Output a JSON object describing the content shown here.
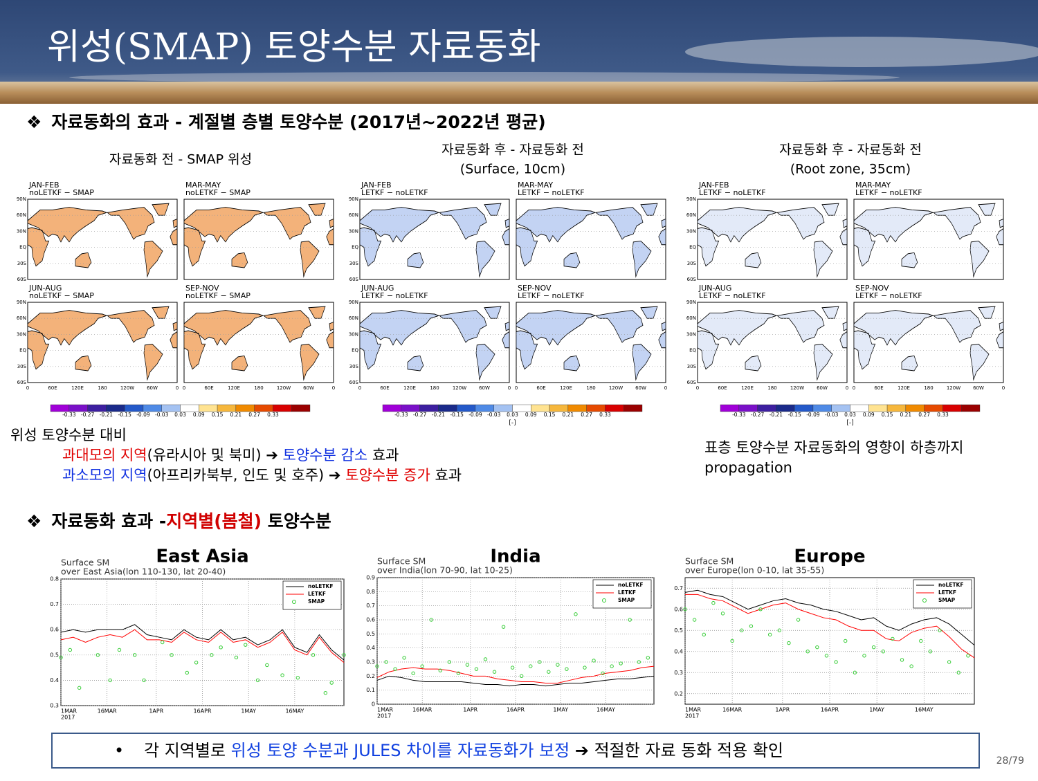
{
  "header": {
    "title": "위성(SMAP) 토양수분 자료동화"
  },
  "section1": {
    "bullet": "❖",
    "heading": "자료동화의 효과 - 계절별 층별 토양수분 (2017년~2022년 평균)"
  },
  "map_axes": {
    "lat_labels": [
      "90N",
      "60N",
      "30N",
      "EQ",
      "30S",
      "60S"
    ],
    "lon_labels": [
      "0",
      "60E",
      "120E",
      "180",
      "120W",
      "60W",
      "0"
    ]
  },
  "colorbar": {
    "colors": [
      "#a000d8",
      "#7a10c8",
      "#3d1fa0",
      "#1a2a8a",
      "#2459c9",
      "#4f8ae6",
      "#a4c2f2",
      "#ffffff",
      "#ffe391",
      "#f6b73c",
      "#f08a00",
      "#e64a00",
      "#d80000",
      "#9a0000"
    ],
    "ticks": [
      -0.33,
      -0.27,
      -0.21,
      -0.15,
      -0.09,
      -0.03,
      0.03,
      0.09,
      0.15,
      0.21,
      0.27,
      0.33
    ]
  },
  "map_groups": [
    {
      "title": [
        "자료동화 전 - SMAP 위성"
      ],
      "land": "#f3b27a",
      "panels": [
        {
          "season": "JAN-FEB",
          "label": "noLETKF − SMAP"
        },
        {
          "season": "MAR-MAY",
          "label": "noLETKF − SMAP"
        },
        {
          "season": "JUN-AUG",
          "label": "noLETKF − SMAP"
        },
        {
          "season": "SEP-NOV",
          "label": "noLETKF − SMAP"
        }
      ]
    },
    {
      "title": [
        "자료동화 후  - 자료동화 전",
        "(Surface, 10cm)"
      ],
      "unit": "[-]",
      "land": "#c3d3f3",
      "panels": [
        {
          "season": "JAN-FEB",
          "label": "LETKF − noLETKF"
        },
        {
          "season": "MAR-MAY",
          "label": "LETKF − noLETKF"
        },
        {
          "season": "JUN-AUG",
          "label": "LETKF − noLETKF"
        },
        {
          "season": "SEP-NOV",
          "label": "LETKF − noLETKF"
        }
      ]
    },
    {
      "title": [
        "자료동화 후  - 자료동화 전",
        "(Root zone, 35cm)"
      ],
      "unit": "[-]",
      "land": "#e3eaf8",
      "panels": [
        {
          "season": "JAN-FEB",
          "label": "LETKF − noLETKF"
        },
        {
          "season": "MAR-MAY",
          "label": "LETKF − noLETKF"
        },
        {
          "season": "JUN-AUG",
          "label": "LETKF − noLETKF"
        },
        {
          "season": "SEP-NOV",
          "label": "LETKF − noLETKF"
        }
      ]
    }
  ],
  "notes": {
    "left": {
      "heading": "위성 토양수분 대비",
      "line1": [
        "과대모의 지역",
        "(유라시아 및 북미) ➔  ",
        "토양수분 감소",
        " 효과"
      ],
      "line2": [
        "과소모의 지역",
        "(아프리카북부, 인도 및 호주) ➔ ",
        "토양수분 증가",
        " 효과"
      ]
    },
    "right": [
      "표층 토양수분 자료동화의 영향이 하층까지",
      "propagation"
    ]
  },
  "section2": {
    "bullet": "❖",
    "heading": [
      "자료동화 효과 -",
      "지역별(봄철)",
      " 토양수분"
    ]
  },
  "chart_data": [
    {
      "type": "line",
      "region": "East Asia",
      "title": [
        "Surface SM",
        "over East Asia(lon 110-130, lat 20-40)"
      ],
      "xlim": [
        0,
        92
      ],
      "xticks": [
        {
          "value": 0,
          "label": "1MAR"
        },
        {
          "value": 15,
          "label": "16MAR"
        },
        {
          "value": 31,
          "label": "1APR"
        },
        {
          "value": 46,
          "label": "16APR"
        },
        {
          "value": 61,
          "label": "1MAY"
        },
        {
          "value": 76,
          "label": "16MAY"
        }
      ],
      "x_sublabel": "2017",
      "ylim": [
        0.3,
        0.8
      ],
      "yticks": [
        0.3,
        0.4,
        0.5,
        0.6,
        0.7,
        0.8
      ],
      "grid": true,
      "series": [
        {
          "name": "noLETKF",
          "color": "#000000",
          "x": [
            0,
            4,
            8,
            12,
            16,
            20,
            24,
            28,
            32,
            36,
            40,
            44,
            48,
            52,
            56,
            60,
            64,
            68,
            72,
            76,
            80,
            84,
            88,
            92
          ],
          "values": [
            0.59,
            0.6,
            0.59,
            0.6,
            0.6,
            0.6,
            0.62,
            0.58,
            0.57,
            0.56,
            0.6,
            0.57,
            0.56,
            0.6,
            0.56,
            0.57,
            0.54,
            0.56,
            0.6,
            0.53,
            0.51,
            0.58,
            0.52,
            0.48
          ]
        },
        {
          "name": "LETKF",
          "color": "#ff0000",
          "x": [
            0,
            4,
            8,
            12,
            16,
            20,
            24,
            28,
            32,
            36,
            40,
            44,
            48,
            52,
            56,
            60,
            64,
            68,
            72,
            76,
            80,
            84,
            88,
            92
          ],
          "values": [
            0.56,
            0.57,
            0.55,
            0.57,
            0.58,
            0.57,
            0.6,
            0.56,
            0.56,
            0.55,
            0.59,
            0.56,
            0.55,
            0.59,
            0.55,
            0.56,
            0.53,
            0.55,
            0.59,
            0.52,
            0.5,
            0.57,
            0.51,
            0.47
          ]
        },
        {
          "name": "SMAP",
          "color": "#33cc33",
          "marker": "circle",
          "x": [
            0,
            3,
            6,
            12,
            16,
            19,
            24,
            27,
            33,
            36,
            41,
            44,
            49,
            52,
            57,
            60,
            64,
            67,
            72,
            77,
            82,
            86,
            88,
            92
          ],
          "values": [
            0.49,
            0.52,
            0.37,
            0.5,
            0.4,
            0.52,
            0.5,
            0.4,
            0.55,
            0.5,
            0.43,
            0.47,
            0.5,
            0.53,
            0.49,
            0.54,
            0.4,
            0.46,
            0.42,
            0.41,
            0.5,
            0.35,
            0.39,
            0.5
          ]
        }
      ]
    },
    {
      "type": "line",
      "region": "India",
      "title": [
        "Surface SM",
        "over India(lon 70-90, lat 10-25)"
      ],
      "xlim": [
        0,
        92
      ],
      "xticks": [
        {
          "value": 0,
          "label": "1MAR"
        },
        {
          "value": 15,
          "label": "16MAR"
        },
        {
          "value": 31,
          "label": "1APR"
        },
        {
          "value": 46,
          "label": "16APR"
        },
        {
          "value": 61,
          "label": "1MAY"
        },
        {
          "value": 76,
          "label": "16MAY"
        }
      ],
      "x_sublabel": "2017",
      "ylim": [
        0,
        0.9
      ],
      "yticks": [
        0,
        0.1,
        0.2,
        0.3,
        0.4,
        0.5,
        0.6,
        0.7,
        0.8,
        0.9
      ],
      "grid": true,
      "series": [
        {
          "name": "noLETKF",
          "color": "#000000",
          "x": [
            0,
            4,
            8,
            12,
            16,
            20,
            24,
            28,
            32,
            36,
            40,
            44,
            48,
            52,
            56,
            60,
            64,
            68,
            72,
            76,
            80,
            84,
            88,
            92
          ],
          "values": [
            0.17,
            0.2,
            0.19,
            0.17,
            0.16,
            0.16,
            0.16,
            0.16,
            0.15,
            0.14,
            0.14,
            0.13,
            0.14,
            0.14,
            0.13,
            0.14,
            0.15,
            0.15,
            0.16,
            0.17,
            0.18,
            0.18,
            0.19,
            0.2
          ]
        },
        {
          "name": "LETKF",
          "color": "#ff0000",
          "x": [
            0,
            4,
            8,
            12,
            16,
            20,
            24,
            28,
            32,
            36,
            40,
            44,
            48,
            52,
            56,
            60,
            64,
            68,
            72,
            76,
            80,
            84,
            88,
            92
          ],
          "values": [
            0.19,
            0.23,
            0.25,
            0.26,
            0.25,
            0.25,
            0.24,
            0.22,
            0.2,
            0.2,
            0.18,
            0.17,
            0.16,
            0.16,
            0.15,
            0.15,
            0.17,
            0.19,
            0.2,
            0.22,
            0.23,
            0.24,
            0.26,
            0.27
          ]
        },
        {
          "name": "SMAP",
          "color": "#33cc33",
          "marker": "circle",
          "x": [
            0,
            3,
            6,
            9,
            12,
            15,
            18,
            21,
            24,
            27,
            30,
            33,
            36,
            39,
            42,
            45,
            48,
            51,
            54,
            57,
            60,
            63,
            66,
            69,
            72,
            75,
            78,
            81,
            84,
            87,
            90
          ],
          "values": [
            0.27,
            0.3,
            0.25,
            0.33,
            0.22,
            0.27,
            0.6,
            0.24,
            0.3,
            0.22,
            0.28,
            0.25,
            0.32,
            0.23,
            0.55,
            0.26,
            0.2,
            0.27,
            0.3,
            0.23,
            0.28,
            0.25,
            0.64,
            0.26,
            0.31,
            0.22,
            0.27,
            0.29,
            0.6,
            0.3,
            0.33
          ]
        }
      ]
    },
    {
      "type": "line",
      "region": "Europe",
      "title": [
        "Surface SM",
        "over Europe(lon 0-10, lat 35-55)"
      ],
      "xlim": [
        0,
        92
      ],
      "xticks": [
        {
          "value": 0,
          "label": "1MAR"
        },
        {
          "value": 15,
          "label": "16MAR"
        },
        {
          "value": 31,
          "label": "1APR"
        },
        {
          "value": 46,
          "label": "16APR"
        },
        {
          "value": 61,
          "label": "1MAY"
        },
        {
          "value": 76,
          "label": "16MAY"
        }
      ],
      "x_sublabel": "2017",
      "ylim": [
        0.15,
        0.75
      ],
      "yticks": [
        0.2,
        0.3,
        0.4,
        0.5,
        0.6,
        0.7
      ],
      "grid": true,
      "series": [
        {
          "name": "noLETKF",
          "color": "#000000",
          "x": [
            0,
            4,
            8,
            12,
            16,
            20,
            24,
            28,
            32,
            36,
            40,
            44,
            48,
            52,
            56,
            60,
            64,
            68,
            72,
            76,
            80,
            84,
            88,
            92
          ],
          "values": [
            0.68,
            0.69,
            0.67,
            0.66,
            0.63,
            0.6,
            0.62,
            0.64,
            0.65,
            0.63,
            0.62,
            0.6,
            0.59,
            0.57,
            0.55,
            0.56,
            0.52,
            0.5,
            0.53,
            0.55,
            0.56,
            0.53,
            0.48,
            0.43
          ]
        },
        {
          "name": "LETKF",
          "color": "#ff0000",
          "x": [
            0,
            4,
            8,
            12,
            16,
            20,
            24,
            28,
            32,
            36,
            40,
            44,
            48,
            52,
            56,
            60,
            64,
            68,
            72,
            76,
            80,
            84,
            88,
            92
          ],
          "values": [
            0.67,
            0.67,
            0.65,
            0.64,
            0.61,
            0.58,
            0.6,
            0.62,
            0.63,
            0.6,
            0.58,
            0.56,
            0.55,
            0.52,
            0.5,
            0.5,
            0.46,
            0.45,
            0.49,
            0.51,
            0.52,
            0.47,
            0.41,
            0.37
          ]
        },
        {
          "name": "SMAP",
          "color": "#33cc33",
          "marker": "circle",
          "x": [
            0,
            3,
            6,
            9,
            12,
            15,
            18,
            21,
            24,
            27,
            30,
            33,
            36,
            39,
            42,
            45,
            48,
            51,
            54,
            57,
            60,
            63,
            66,
            69,
            72,
            75,
            78,
            81,
            84,
            87,
            90
          ],
          "values": [
            0.6,
            0.55,
            0.48,
            0.63,
            0.58,
            0.45,
            0.5,
            0.52,
            0.6,
            0.48,
            0.5,
            0.44,
            0.55,
            0.4,
            0.42,
            0.38,
            0.35,
            0.45,
            0.3,
            0.38,
            0.42,
            0.4,
            0.46,
            0.36,
            0.33,
            0.45,
            0.4,
            0.5,
            0.35,
            0.3,
            0.38
          ]
        }
      ]
    }
  ],
  "footer": {
    "bullet": "•",
    "text": [
      "각 지역별로 ",
      "위성 토양 수분과 JULES 차이를 자료동화가 보정",
      " ➔ 적절한 자료 동화 적용 확인"
    ],
    "page": "28/79"
  }
}
